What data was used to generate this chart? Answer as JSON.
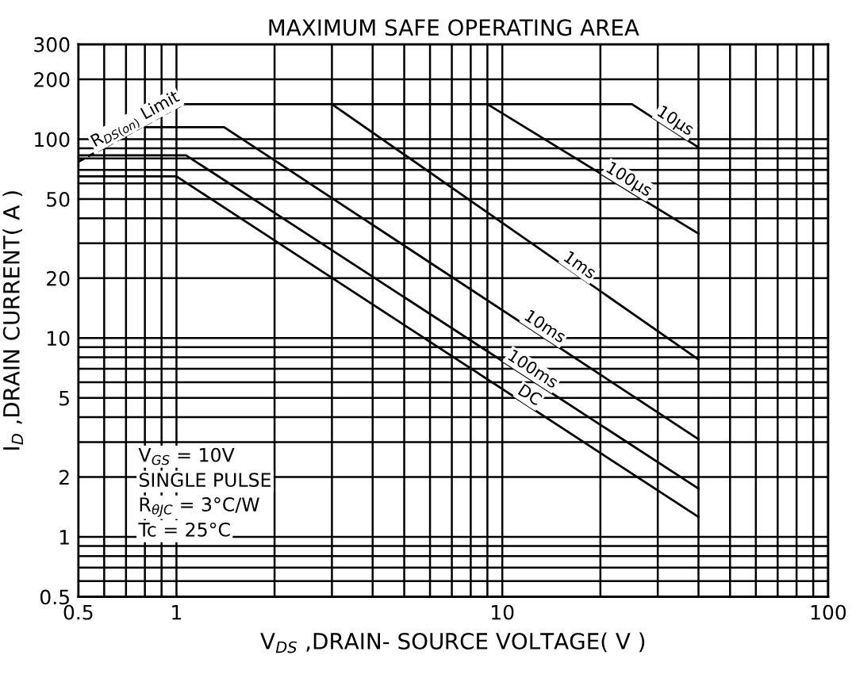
{
  "chart_data": {
    "type": "line",
    "title": "MAXIMUM SAFE OPERATING AREA",
    "xlabel": "V$_{DS}$ ,DRAIN- SOURCE VOLTAGE( V )",
    "ylabel": "I$_{D}$ ,DRAIN CURRENT( A )",
    "log": "xy",
    "xlim": [
      0.5,
      100
    ],
    "ylim": [
      0.5,
      300
    ],
    "xticks": [
      0.5,
      {
        "value": 0.6,
        "label": null
      },
      {
        "value": 0.7,
        "label": null
      },
      {
        "value": 0.8,
        "label": null
      },
      {
        "value": 0.9,
        "label": null
      },
      1,
      {
        "value": 2,
        "label": null
      },
      {
        "value": 3,
        "label": null
      },
      {
        "value": 4,
        "label": null
      },
      {
        "value": 5,
        "label": null
      },
      {
        "value": 6,
        "label": null
      },
      {
        "value": 7,
        "label": null
      },
      {
        "value": 8,
        "label": null
      },
      {
        "value": 9,
        "label": null
      },
      10,
      {
        "value": 20,
        "label": null
      },
      {
        "value": 30,
        "label": null
      },
      {
        "value": 40,
        "label": null
      },
      {
        "value": 50,
        "label": null
      },
      {
        "value": 60,
        "label": null
      },
      {
        "value": 70,
        "label": null
      },
      {
        "value": 80,
        "label": null
      },
      {
        "value": 90,
        "label": null
      },
      100
    ],
    "yticks": [
      0.5,
      {
        "value": 0.6,
        "label": null
      },
      {
        "value": 0.7,
        "label": null
      },
      {
        "value": 0.8,
        "label": null
      },
      {
        "value": 0.9,
        "label": null
      },
      1,
      2,
      {
        "value": 3,
        "label": null
      },
      {
        "value": 4,
        "label": null
      },
      5,
      {
        "value": 6,
        "label": null
      },
      {
        "value": 7,
        "label": null
      },
      {
        "value": 8,
        "label": null
      },
      {
        "value": 9,
        "label": null
      },
      10,
      20,
      {
        "value": 30,
        "label": null
      },
      {
        "value": 40,
        "label": null
      },
      50,
      {
        "value": 60,
        "label": null
      },
      {
        "value": 70,
        "label": null
      },
      {
        "value": 80,
        "label": null
      },
      {
        "value": 90,
        "label": null
      },
      100,
      200,
      300
    ],
    "grid": true,
    "legend": false,
    "marker": "none",
    "series": [
      {
        "name": "R$_{DS(on)}$ Limit",
        "color": "#000000",
        "line_style": "dashed",
        "x": [
          0.5,
          1.05
        ],
        "values": [
          77,
          150
        ]
      },
      {
        "name": "10µs",
        "color": "#000000",
        "x": [
          1.05,
          25,
          40
        ],
        "values": [
          150,
          150,
          91
        ]
      },
      {
        "name": "100µs",
        "color": "#000000",
        "x": [
          9,
          40
        ],
        "values": [
          150,
          33.5
        ]
      },
      {
        "name": "1ms",
        "color": "#000000",
        "x": [
          3,
          40
        ],
        "values": [
          150,
          7.8
        ]
      },
      {
        "name": "10ms",
        "color": "#000000",
        "x": [
          0.8,
          1.4,
          40
        ],
        "values": [
          115,
          115,
          3.1
        ]
      },
      {
        "name": "100ms",
        "color": "#000000",
        "x": [
          0.5,
          1.07,
          40
        ],
        "values": [
          83,
          83,
          1.75
        ]
      },
      {
        "name": "DC",
        "color": "#000000",
        "x": [
          0.5,
          1.0,
          40
        ],
        "values": [
          65,
          65,
          1.26
        ]
      }
    ],
    "annotations": [
      "V$_{GS}$ = 10V",
      "SINGLE PULSE",
      "R$_{θJC}$ = 3°C/W",
      "Tc = 25°C"
    ]
  }
}
